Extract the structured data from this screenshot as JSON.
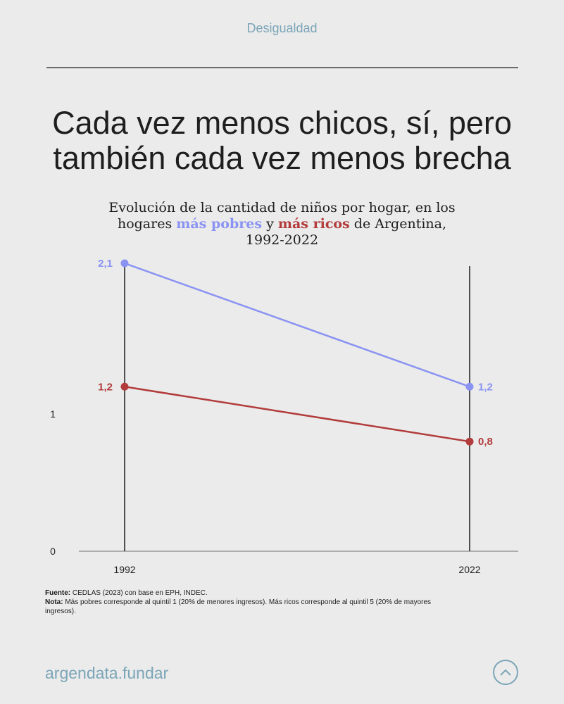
{
  "header": {
    "category": "Desigualdad"
  },
  "chart_data": {
    "type": "line",
    "title": "Cada vez menos chicos, sí, pero también cada vez menos brecha",
    "subtitle": {
      "part1": "Evolución de la cantidad de niños por hogar, en los hogares ",
      "poor": "más pobres",
      "mid": " y ",
      "rich": "más ricos",
      "part2": " de Argentina, 1992-2022"
    },
    "x": [
      "1992",
      "2022"
    ],
    "y_ticks": [
      "0",
      "1"
    ],
    "ylim": [
      0,
      2.1
    ],
    "series": [
      {
        "name": "más pobres",
        "values": [
          2.1,
          1.2
        ],
        "labels": [
          "2,1",
          "1,2"
        ],
        "color": "#8a93f2"
      },
      {
        "name": "más ricos",
        "values": [
          1.2,
          0.8
        ],
        "labels": [
          "1,2",
          "0,8"
        ],
        "color": "#b23b3b"
      }
    ],
    "grid": false
  },
  "notes": {
    "source_label": "Fuente:",
    "source_text": " CEDLAS (2023) con base en EPH, INDEC.",
    "note_label": "Nota:",
    "note_text": " Más pobres corresponde al quintil 1 (20% de menores ingresos). Más ricos corresponde al quintil 5 (20% de mayores ingresos)."
  },
  "footer": {
    "brand": "argendata.fundar",
    "icon": "chevron-up-icon"
  }
}
